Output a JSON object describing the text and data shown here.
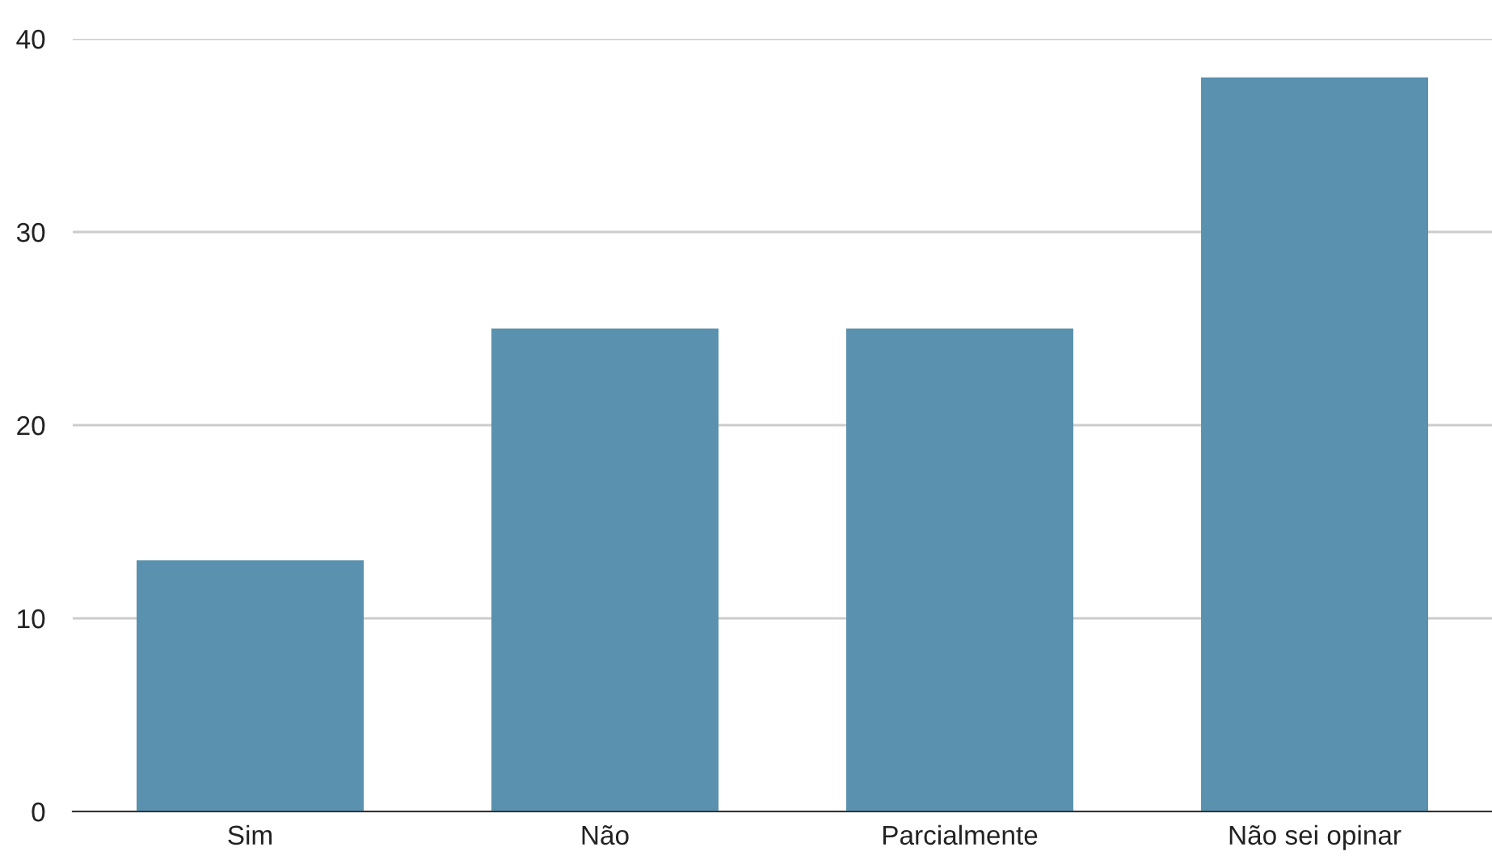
{
  "chart_data": {
    "type": "bar",
    "categories": [
      "Sim",
      "Não",
      "Parcialmente",
      "Não sei opinar"
    ],
    "values": [
      13,
      25,
      25,
      38
    ],
    "color": "#5a91ae",
    "ylim": [
      0,
      40
    ],
    "yticks": [
      0,
      10,
      20,
      30,
      40
    ],
    "grid": "y"
  }
}
